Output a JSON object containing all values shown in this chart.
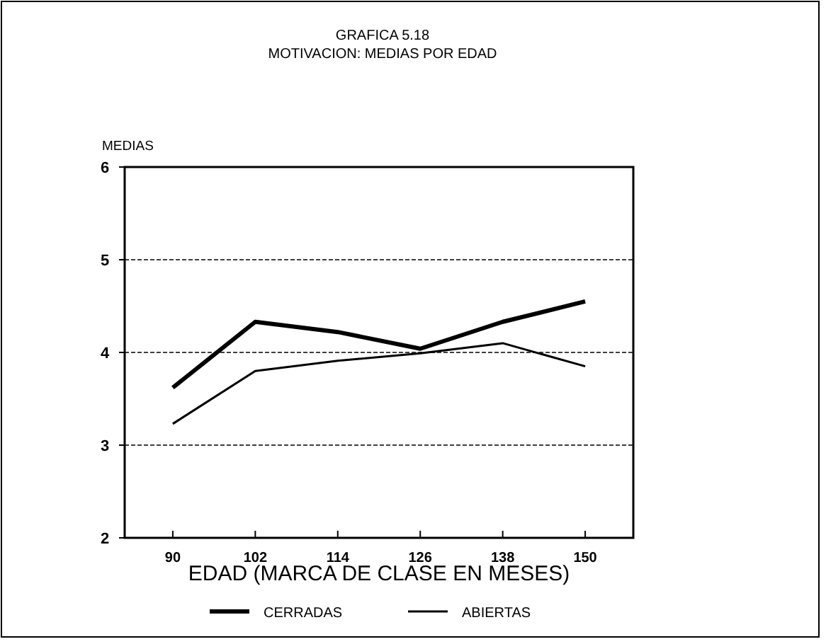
{
  "chart_data": {
    "type": "line",
    "title": "GRAFICA 5.18",
    "subtitle": "MOTIVACION: MEDIAS POR EDAD",
    "xlabel": "EDAD (MARCA DE CLASE EN MESES)",
    "ylabel": "MEDIAS",
    "x": [
      90,
      102,
      114,
      126,
      138,
      150
    ],
    "series": [
      {
        "name": "CERRADAS",
        "color": "#000000",
        "values": [
          3.62,
          4.33,
          4.22,
          4.04,
          4.33,
          4.55
        ]
      },
      {
        "name": "ABIERTAS",
        "color": "#000000",
        "values": [
          3.23,
          3.8,
          3.91,
          3.99,
          4.1,
          3.85
        ]
      }
    ],
    "xlim": [
      83,
      157
    ],
    "xticks": [
      90,
      102,
      114,
      126,
      138,
      150
    ],
    "ylim": [
      2,
      6
    ],
    "yticks": [
      2,
      3,
      4,
      5,
      6
    ],
    "grid": "y",
    "legend": "bottom",
    "marker": "none",
    "line_style": "solid"
  }
}
